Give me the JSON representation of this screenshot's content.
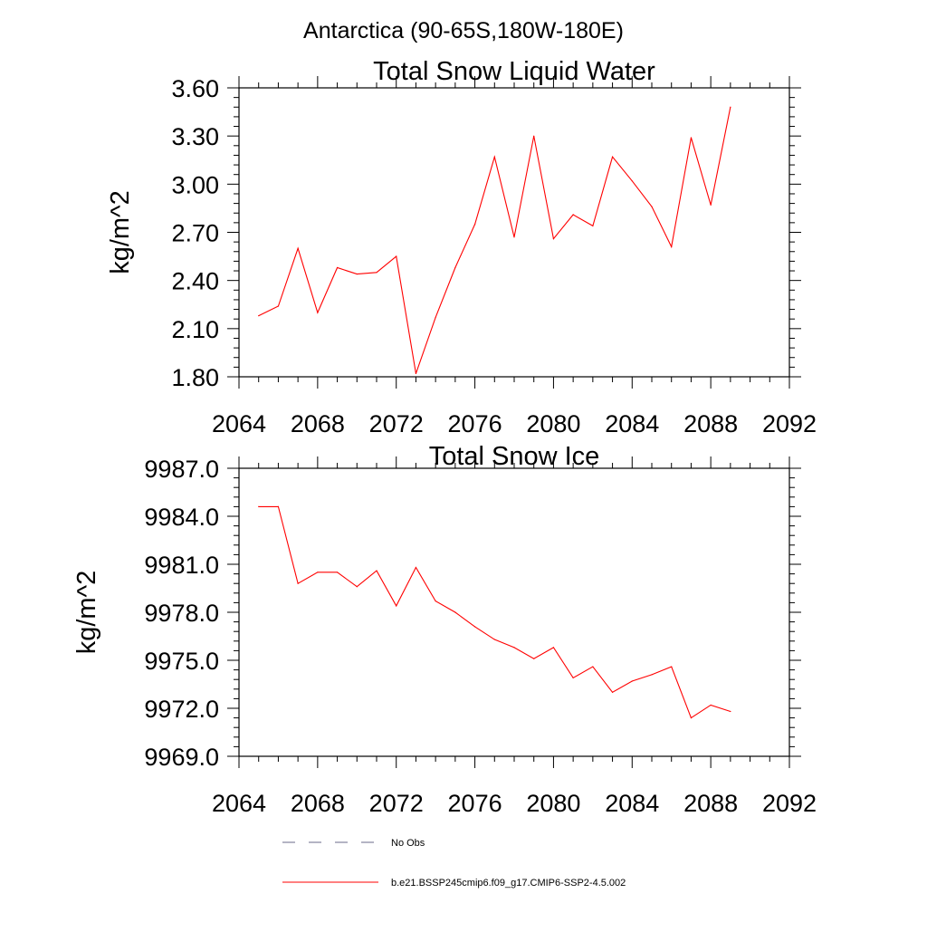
{
  "figure": {
    "suptitle": "Antarctica (90-65S,180W-180E)",
    "line_color": "#ff0000",
    "axis_color": "#000000",
    "legend": [
      {
        "label": "No Obs",
        "style": "dashed",
        "color": "#6a6a8a"
      },
      {
        "label": "b.e21.BSSP245cmip6.f09_g17.CMIP6-SSP2-4.5.002",
        "style": "solid",
        "color": "#ff0000"
      }
    ]
  },
  "chart_data": [
    {
      "type": "line",
      "title": "Total Snow Liquid Water",
      "ylabel": "kg/m^2",
      "xlabel": "",
      "xlim": [
        2064,
        2092
      ],
      "ylim": [
        1.8,
        3.6
      ],
      "xticks": [
        2064,
        2068,
        2072,
        2076,
        2080,
        2084,
        2088,
        2092
      ],
      "xtick_labels": [
        "2064",
        "2068",
        "2072",
        "2076",
        "2080",
        "2084",
        "2088",
        "2092"
      ],
      "yticks": [
        1.8,
        2.1,
        2.4,
        2.7,
        3.0,
        3.3,
        3.6
      ],
      "ytick_labels": [
        "1.80",
        "2.10",
        "2.40",
        "2.70",
        "3.00",
        "3.30",
        "3.60"
      ],
      "grid": false,
      "x": [
        2065,
        2066,
        2067,
        2068,
        2069,
        2070,
        2071,
        2072,
        2073,
        2074,
        2075,
        2076,
        2077,
        2078,
        2079,
        2080,
        2081,
        2082,
        2083,
        2084,
        2085,
        2086,
        2087,
        2088,
        2089
      ],
      "series": [
        {
          "values": [
            2.18,
            2.24,
            2.6,
            2.2,
            2.48,
            2.44,
            2.45,
            2.55,
            1.82,
            2.17,
            2.48,
            2.75,
            3.17,
            2.67,
            3.3,
            2.66,
            2.81,
            2.74,
            3.17,
            3.02,
            2.86,
            2.61,
            3.29,
            2.87,
            3.48
          ]
        }
      ]
    },
    {
      "type": "line",
      "title": "Total Snow Ice",
      "ylabel": "kg/m^2",
      "xlabel": "",
      "xlim": [
        2064,
        2092
      ],
      "ylim": [
        9969.0,
        9987.0
      ],
      "xticks": [
        2064,
        2068,
        2072,
        2076,
        2080,
        2084,
        2088,
        2092
      ],
      "xtick_labels": [
        "2064",
        "2068",
        "2072",
        "2076",
        "2080",
        "2084",
        "2088",
        "2092"
      ],
      "yticks": [
        9969.0,
        9972.0,
        9975.0,
        9978.0,
        9981.0,
        9984.0,
        9987.0
      ],
      "ytick_labels": [
        "9969.0",
        "9972.0",
        "9975.0",
        "9978.0",
        "9981.0",
        "9984.0",
        "9987.0"
      ],
      "grid": false,
      "x": [
        2065,
        2066,
        2067,
        2068,
        2069,
        2070,
        2071,
        2072,
        2073,
        2074,
        2075,
        2076,
        2077,
        2078,
        2079,
        2080,
        2081,
        2082,
        2083,
        2084,
        2085,
        2086,
        2087,
        2088,
        2089
      ],
      "series": [
        {
          "values": [
            9984.6,
            9984.6,
            9979.8,
            9980.5,
            9980.5,
            9979.6,
            9980.6,
            9978.4,
            9980.8,
            9978.7,
            9978.0,
            9977.1,
            9976.3,
            9975.8,
            9975.1,
            9975.8,
            9973.9,
            9974.6,
            9973.0,
            9973.7,
            9974.1,
            9974.6,
            9971.4,
            9972.2,
            9971.8
          ]
        }
      ]
    }
  ]
}
